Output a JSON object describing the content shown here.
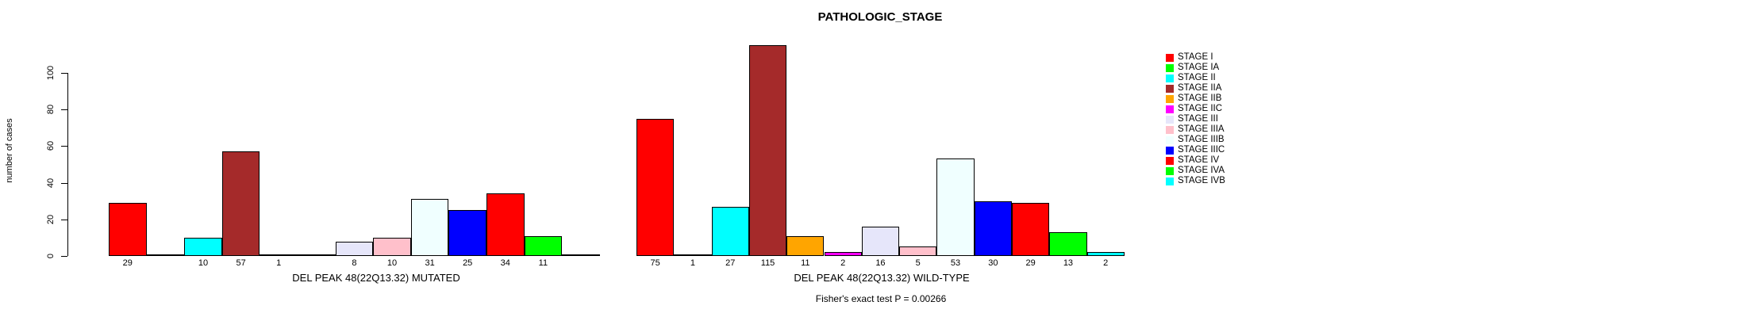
{
  "title": "PATHOLOGIC_STAGE",
  "footnote": "Fisher's exact test P = 0.00266",
  "chart_data": {
    "type": "bar",
    "title": "PATHOLOGIC_STAGE",
    "xlabel": "",
    "ylabel": "number of cases",
    "ylim": [
      0,
      100
    ],
    "yticks": [
      0,
      20,
      40,
      60,
      80,
      100
    ],
    "grid": false,
    "legend_position": "right",
    "categories": [
      "STAGE I",
      "STAGE IA",
      "STAGE II",
      "STAGE IIA",
      "STAGE IIB",
      "STAGE IIC",
      "STAGE III",
      "STAGE IIIA",
      "STAGE IIIB",
      "STAGE IIIC",
      "STAGE IV",
      "STAGE IVA",
      "STAGE IVB"
    ],
    "colors": [
      "#FF0000",
      "#00FF00",
      "#00FFFF",
      "#A52A2A",
      "#FFA500",
      "#FF00FF",
      "#E6E6FA",
      "#FFC0CB",
      "#F0FFFF",
      "#0000FF",
      "#FF0000",
      "#00FF00",
      "#00FFFF"
    ],
    "series": [
      {
        "name": "DEL PEAK 48(22Q13.32) MUTATED",
        "values": [
          29,
          0,
          10,
          57,
          1,
          0,
          8,
          10,
          31,
          25,
          34,
          11,
          0
        ]
      },
      {
        "name": "DEL PEAK 48(22Q13.32) WILD-TYPE",
        "values": [
          75,
          1,
          27,
          115,
          11,
          2,
          16,
          5,
          53,
          30,
          29,
          13,
          2
        ]
      }
    ],
    "footnote": "Fisher's exact test P = 0.00266"
  }
}
